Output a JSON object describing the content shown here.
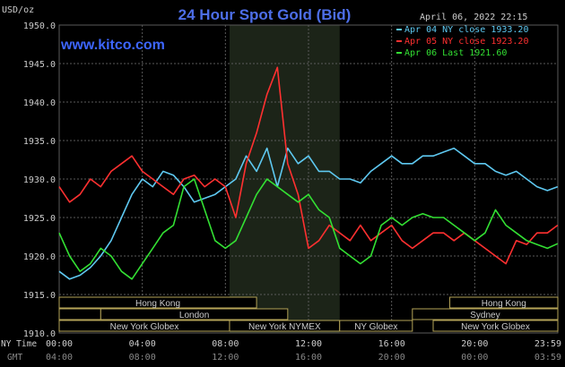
{
  "header": {
    "title": "24 Hour Spot Gold (Bid)",
    "unit_label": "USD/oz",
    "date_label": "April 06, 2022 22:15",
    "site": "www.kitco.com"
  },
  "legend": [
    {
      "text": "Apr 04 NY close 1933.20",
      "color": "#5ec8f0"
    },
    {
      "text": "Apr 05 NY close 1923.20",
      "color": "#ff3030"
    },
    {
      "text": "Apr 06 Last 1921.60",
      "color": "#33e033"
    }
  ],
  "x_axis": {
    "row1_label": "NY Time",
    "row2_label": "GMT",
    "ny_ticks": [
      "00:00",
      "04:00",
      "08:00",
      "12:00",
      "16:00",
      "20:00",
      "23:59"
    ],
    "gmt_ticks": [
      "04:00",
      "08:00",
      "12:00",
      "16:00",
      "20:00",
      "00:00",
      "03:59"
    ]
  },
  "sessions": [
    {
      "name": "Hong Kong",
      "start": 0,
      "end": 9.5,
      "row": 1
    },
    {
      "name": "Hong Kong",
      "start": 18.8,
      "end": 24,
      "row": 1
    },
    {
      "name": "",
      "start": 0,
      "end": 2.0,
      "row": 2
    },
    {
      "name": "London",
      "start": 2.0,
      "end": 11.0,
      "row": 2
    },
    {
      "name": "Sydney",
      "start": 17.0,
      "end": 24,
      "row": 2
    },
    {
      "name": "New York Globex",
      "start": 0,
      "end": 8.2,
      "row": 3
    },
    {
      "name": "New York NYMEX",
      "start": 8.2,
      "end": 13.5,
      "row": 3
    },
    {
      "name": "NY Globex",
      "start": 13.5,
      "end": 17.0,
      "row": 3
    },
    {
      "name": "New York Globex",
      "start": 18.0,
      "end": 24,
      "row": 3
    }
  ],
  "colors": {
    "background": "#000000",
    "grid": "#5a5a5a",
    "highlight": "#1c2418",
    "title": "#4d6ee8",
    "site": "#3d66ff",
    "text": "#cccccc",
    "session_border": "#b5a458"
  },
  "chart_data": {
    "type": "line",
    "title": "24 Hour Spot Gold (Bid)",
    "ylabel": "USD/oz",
    "x_unit": "NY hour",
    "xlim": [
      0,
      24
    ],
    "ylim": [
      1910,
      1950
    ],
    "yticks": [
      1910,
      1915,
      1920,
      1925,
      1930,
      1935,
      1940,
      1945,
      1950
    ],
    "x_ticks": [
      0,
      4,
      8,
      12,
      16,
      20,
      24
    ],
    "grid": true,
    "highlight_hours": [
      8.2,
      13.5
    ],
    "legend_position": "top-right",
    "series": [
      {
        "name": "Apr 04 NY close 1933.20",
        "color": "#5ec8f0",
        "x": [
          0,
          0.5,
          1,
          1.5,
          2,
          2.5,
          3,
          3.5,
          4,
          4.5,
          5,
          5.5,
          6,
          6.5,
          7,
          7.5,
          8,
          8.5,
          9,
          9.5,
          10,
          10.5,
          11,
          11.5,
          12,
          12.5,
          13,
          13.5,
          14,
          14.5,
          15,
          15.5,
          16,
          16.5,
          17,
          17.5,
          18,
          18.5,
          19,
          19.5,
          20,
          20.5,
          21,
          21.5,
          22,
          22.5,
          23,
          23.5,
          23.99
        ],
        "y": [
          1918,
          1917,
          1917.5,
          1918.5,
          1920,
          1922,
          1925,
          1928,
          1930,
          1929,
          1931,
          1930.5,
          1929,
          1927,
          1927.5,
          1928,
          1929,
          1930,
          1933,
          1931,
          1934,
          1929,
          1934,
          1932,
          1933,
          1931,
          1931,
          1930,
          1930,
          1929.5,
          1931,
          1932,
          1933,
          1932,
          1932,
          1933,
          1933,
          1933.5,
          1934,
          1933,
          1932,
          1932,
          1931,
          1930.5,
          1931,
          1930,
          1929,
          1928.5,
          1929
        ]
      },
      {
        "name": "Apr 05 NY close 1923.20",
        "color": "#ff3030",
        "x": [
          0,
          0.5,
          1,
          1.5,
          2,
          2.5,
          3,
          3.5,
          4,
          4.5,
          5,
          5.5,
          6,
          6.5,
          7,
          7.5,
          8,
          8.5,
          9,
          9.5,
          10,
          10.5,
          11,
          11.5,
          12,
          12.5,
          13,
          13.5,
          14,
          14.5,
          15,
          15.5,
          16,
          16.5,
          17,
          17.5,
          18,
          18.5,
          19,
          19.5,
          20,
          20.5,
          21,
          21.5,
          22,
          22.5,
          23,
          23.5,
          23.99
        ],
        "y": [
          1929,
          1927,
          1928,
          1930,
          1929,
          1931,
          1932,
          1933,
          1931,
          1930,
          1929,
          1928,
          1930,
          1930.5,
          1929,
          1930,
          1929,
          1925,
          1932,
          1936,
          1941,
          1944.5,
          1932,
          1928,
          1921,
          1922,
          1924,
          1923,
          1922,
          1924,
          1922,
          1923,
          1924,
          1922,
          1921,
          1922,
          1923,
          1923,
          1922,
          1923,
          1922,
          1921,
          1920,
          1919,
          1922,
          1921.5,
          1923,
          1923,
          1924
        ]
      },
      {
        "name": "Apr 06 Last 1921.60",
        "color": "#33e033",
        "x": [
          0,
          0.5,
          1,
          1.5,
          2,
          2.5,
          3,
          3.5,
          4,
          4.5,
          5,
          5.5,
          6,
          6.5,
          7,
          7.5,
          8,
          8.5,
          9,
          9.5,
          10,
          10.5,
          11,
          11.5,
          12,
          12.5,
          13,
          13.5,
          14,
          14.5,
          15,
          15.5,
          16,
          16.5,
          17,
          17.5,
          18,
          18.5,
          19,
          19.5,
          20,
          20.5,
          21,
          21.5,
          22,
          22.5,
          23,
          23.5,
          23.99
        ],
        "y": [
          1923,
          1920,
          1918,
          1919,
          1921,
          1920,
          1918,
          1917,
          1919,
          1921,
          1923,
          1924,
          1929,
          1930,
          1926,
          1922,
          1921,
          1922,
          1925,
          1928,
          1930,
          1929,
          1928,
          1927,
          1928,
          1926,
          1925,
          1921,
          1920,
          1919,
          1920,
          1924,
          1925,
          1924,
          1925,
          1925.5,
          1925,
          1925,
          1924,
          1923,
          1922,
          1923,
          1926,
          1924,
          1923,
          1922,
          1921.5,
          1921,
          1921.6
        ]
      }
    ]
  }
}
